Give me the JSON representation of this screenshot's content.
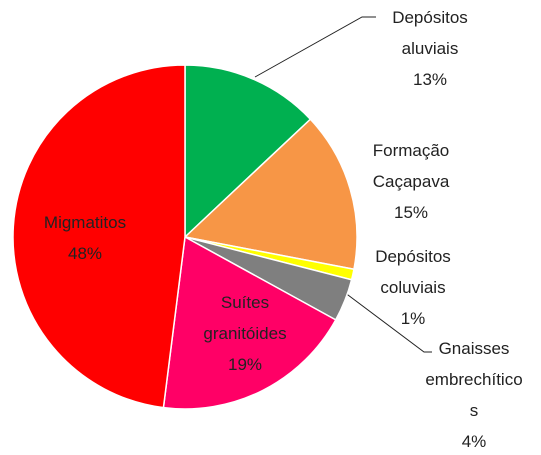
{
  "chart_data": {
    "type": "pie",
    "categories": [
      "Depósitos aluviais",
      "Formação Caçapava",
      "Depósitos coluviais",
      "Gnaisses embrechíticos",
      "Suítes granitóides",
      "Migmatitos"
    ],
    "values": [
      13,
      15,
      1,
      4,
      19,
      48
    ],
    "value_labels": [
      "13%",
      "15%",
      "1%",
      "4%",
      "19%",
      "48%"
    ],
    "colors": [
      "#00b050",
      "#f79646",
      "#ffff00",
      "#7f7f7f",
      "#ff0066",
      "#ff0000"
    ]
  }
}
